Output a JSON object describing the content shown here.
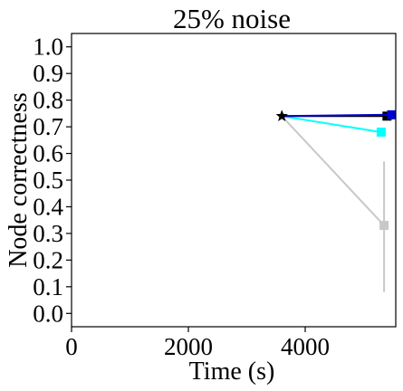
{
  "chart_data": {
    "type": "line",
    "title": "25% noise",
    "xlabel": "Time (s)",
    "ylabel": "Node correctness",
    "xlim": [
      0,
      5550
    ],
    "ylim": [
      -0.05,
      1.05
    ],
    "xticks": [
      0,
      2000,
      4000
    ],
    "yticks": [
      0.0,
      0.1,
      0.2,
      0.3,
      0.4,
      0.5,
      0.6,
      0.7,
      0.8,
      0.9,
      1.0
    ],
    "grid": false,
    "legend": "none",
    "origin": {
      "x": 3600,
      "y": 0.74,
      "marker": "star",
      "color": "#000000"
    },
    "series": [
      {
        "color": "#c8c8c8",
        "marker": "square",
        "points": [
          {
            "x": 3600,
            "y": 0.74
          },
          {
            "x": 5350,
            "y": 0.33,
            "err_low": 0.08,
            "err_high": 0.57
          }
        ]
      },
      {
        "color": "#00ffff",
        "marker": "square",
        "points": [
          {
            "x": 3600,
            "y": 0.74
          },
          {
            "x": 5300,
            "y": 0.68
          }
        ]
      },
      {
        "color": "#0000cc",
        "marker": "square",
        "points": [
          {
            "x": 3600,
            "y": 0.74
          },
          {
            "x": 5480,
            "y": 0.745
          }
        ]
      },
      {
        "color": "#000000",
        "marker": "square",
        "points": [
          {
            "x": 3600,
            "y": 0.74
          },
          {
            "x": 5400,
            "y": 0.74
          }
        ]
      }
    ]
  }
}
